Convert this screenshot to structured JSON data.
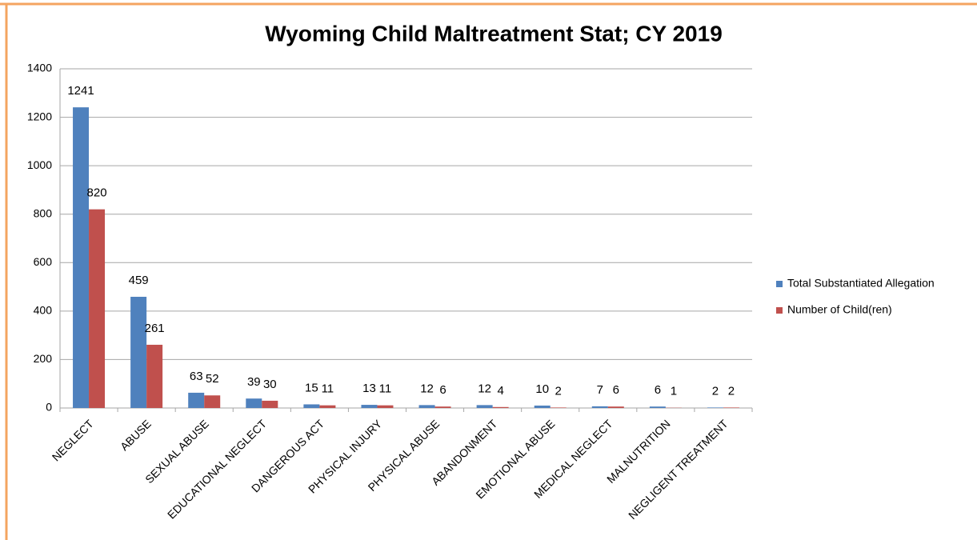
{
  "chart_data": {
    "type": "bar",
    "title": "Wyoming Child Maltreatment Stat; CY 2019",
    "categories": [
      "NEGLECT",
      "ABUSE",
      "SEXUAL ABUSE",
      "EDUCATIONAL NEGLECT",
      "DANGEROUS ACT",
      "PHYSICAL INJURY",
      "PHYSICAL ABUSE",
      "ABANDONMENT",
      "EMOTIONAL ABUSE",
      "MEDICAL NEGLECT",
      "MALNUTRITION",
      "NEGLIGENT TREATMENT"
    ],
    "series": [
      {
        "name": "Total Substantiated Allegation",
        "color": "#4f81bd",
        "values": [
          1241,
          459,
          63,
          39,
          15,
          13,
          12,
          12,
          10,
          7,
          6,
          2
        ]
      },
      {
        "name": "Number of Child(ren)",
        "color": "#c0504d",
        "values": [
          820,
          261,
          52,
          30,
          11,
          11,
          6,
          4,
          2,
          6,
          1,
          2
        ]
      }
    ],
    "ylim": [
      0,
      1400
    ],
    "yticks": [
      0,
      200,
      400,
      600,
      800,
      1000,
      1200,
      1400
    ],
    "grid": true,
    "legend": "right"
  }
}
